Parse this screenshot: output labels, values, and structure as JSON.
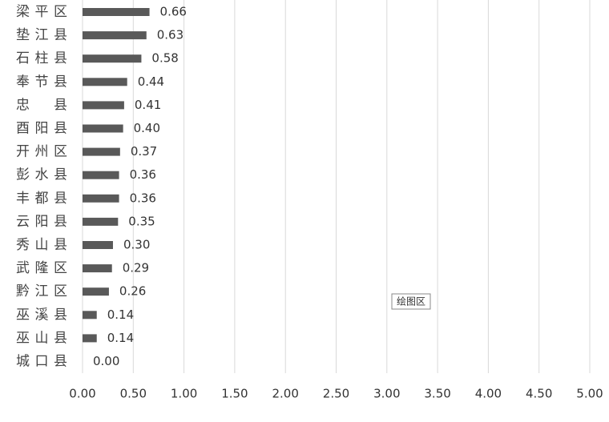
{
  "chart_data": {
    "type": "bar",
    "orientation": "horizontal",
    "categories": [
      "梁平区",
      "垫江县",
      "石柱县",
      "奉节县",
      "忠县",
      "酉阳县",
      "开州区",
      "彭水县",
      "丰都县",
      "云阳县",
      "秀山县",
      "武隆区",
      "黔江区",
      "巫溪县",
      "巫山县",
      "城口县"
    ],
    "values": [
      0.66,
      0.63,
      0.58,
      0.44,
      0.41,
      0.4,
      0.37,
      0.36,
      0.36,
      0.35,
      0.3,
      0.29,
      0.26,
      0.14,
      0.14,
      0
    ],
    "value_labels": [
      "0.66",
      "0.63",
      "0.58",
      "0.44",
      "0.41",
      "0.40",
      "0.37",
      "0.36",
      "0.36",
      "0.35",
      "0.30",
      "0.29",
      "0.26",
      "0.14",
      "0.14",
      "0.00"
    ],
    "color": "#595959",
    "xlim": [
      0,
      5
    ],
    "xticks": [
      {
        "value": 0,
        "label": "0.00"
      },
      {
        "value": 0.5,
        "label": "0.50"
      },
      {
        "value": 1,
        "label": "1.00"
      },
      {
        "value": 1.5,
        "label": "1.50"
      },
      {
        "value": 2,
        "label": "2.00"
      },
      {
        "value": 2.5,
        "label": "2.50"
      },
      {
        "value": 3,
        "label": "3.00"
      },
      {
        "value": 3.5,
        "label": "3.50"
      },
      {
        "value": 4,
        "label": "4.00"
      },
      {
        "value": 4.5,
        "label": "4.50"
      },
      {
        "value": 5,
        "label": "5.00"
      }
    ],
    "grid": true,
    "tooltip": "绘图区"
  }
}
